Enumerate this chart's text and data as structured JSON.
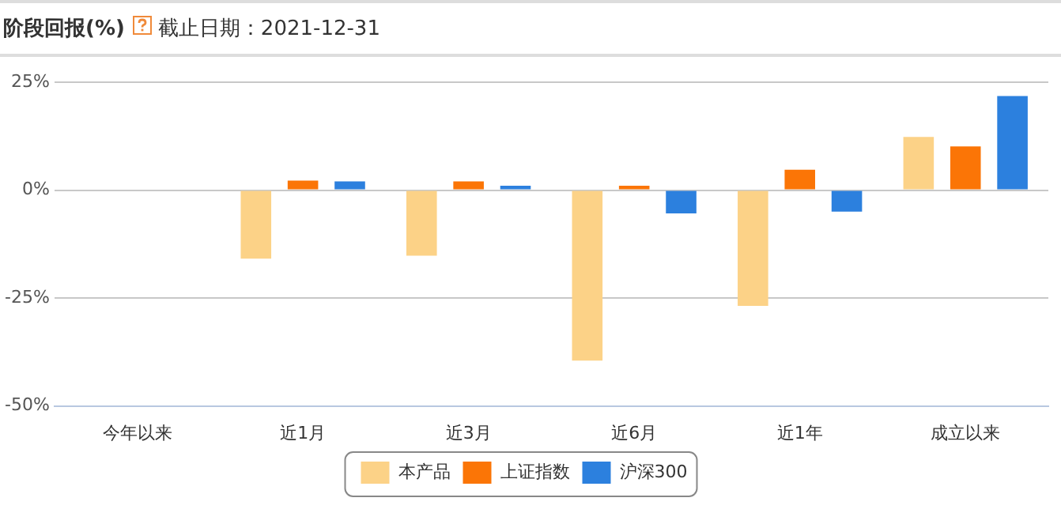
{
  "chart_data": {
    "type": "bar",
    "title": "阶段回报(%)",
    "subtitle": "截止日期：2021-12-31",
    "categories": [
      "今年以来",
      "近1月",
      "近3月",
      "近6月",
      "近1年",
      "成立以来"
    ],
    "series": [
      {
        "name": "本产品",
        "color": "#fcd287",
        "values": [
          null,
          -15.9,
          -15.2,
          -39.5,
          -26.8,
          12.3
        ]
      },
      {
        "name": "上证指数",
        "color": "#fb7506",
        "values": [
          null,
          2.2,
          2.0,
          1.0,
          4.7,
          10.1
        ]
      },
      {
        "name": "沪深300",
        "color": "#2c80de",
        "values": [
          null,
          2.0,
          1.0,
          -5.4,
          -5.0,
          21.8
        ]
      }
    ],
    "ylim": [
      -50,
      25
    ],
    "yticks": [
      {
        "value": -50,
        "label": "-50%"
      },
      {
        "value": -25,
        "label": "-25%"
      },
      {
        "value": 0,
        "label": "0%"
      },
      {
        "value": 25,
        "label": "25%"
      }
    ],
    "grid": "y",
    "legend": "bottom"
  }
}
